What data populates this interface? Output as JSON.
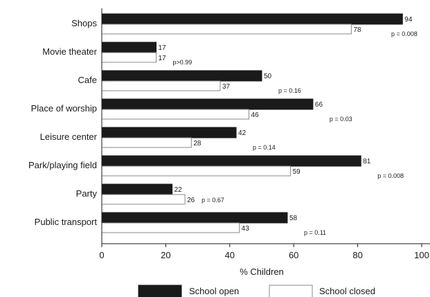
{
  "chart_data": {
    "type": "bar",
    "orientation": "horizontal",
    "categories": [
      "Shops",
      "Movie theater",
      "Cafe",
      "Place of worship",
      "Leisure center",
      "Park/playing field",
      "Party",
      "Public transport"
    ],
    "series": [
      {
        "name": "School open",
        "color": "#1a1a1a",
        "values": [
          94,
          17,
          50,
          66,
          42,
          81,
          22,
          58
        ]
      },
      {
        "name": "School closed",
        "color": "#ffffff",
        "values": [
          78,
          17,
          37,
          46,
          28,
          59,
          26,
          43
        ]
      }
    ],
    "p_values": [
      "p = 0.008",
      "p>0.99",
      "p = 0.16",
      "p = 0.03",
      "p = 0.14",
      "p = 0.008",
      "p = 0.67",
      "p = 0.11"
    ],
    "xlabel": "% Children",
    "ylabel": "",
    "title": "",
    "xlim": [
      0,
      100
    ],
    "xticks": [
      0,
      20,
      40,
      60,
      80,
      100
    ],
    "grid": false,
    "legend_position": "bottom"
  }
}
